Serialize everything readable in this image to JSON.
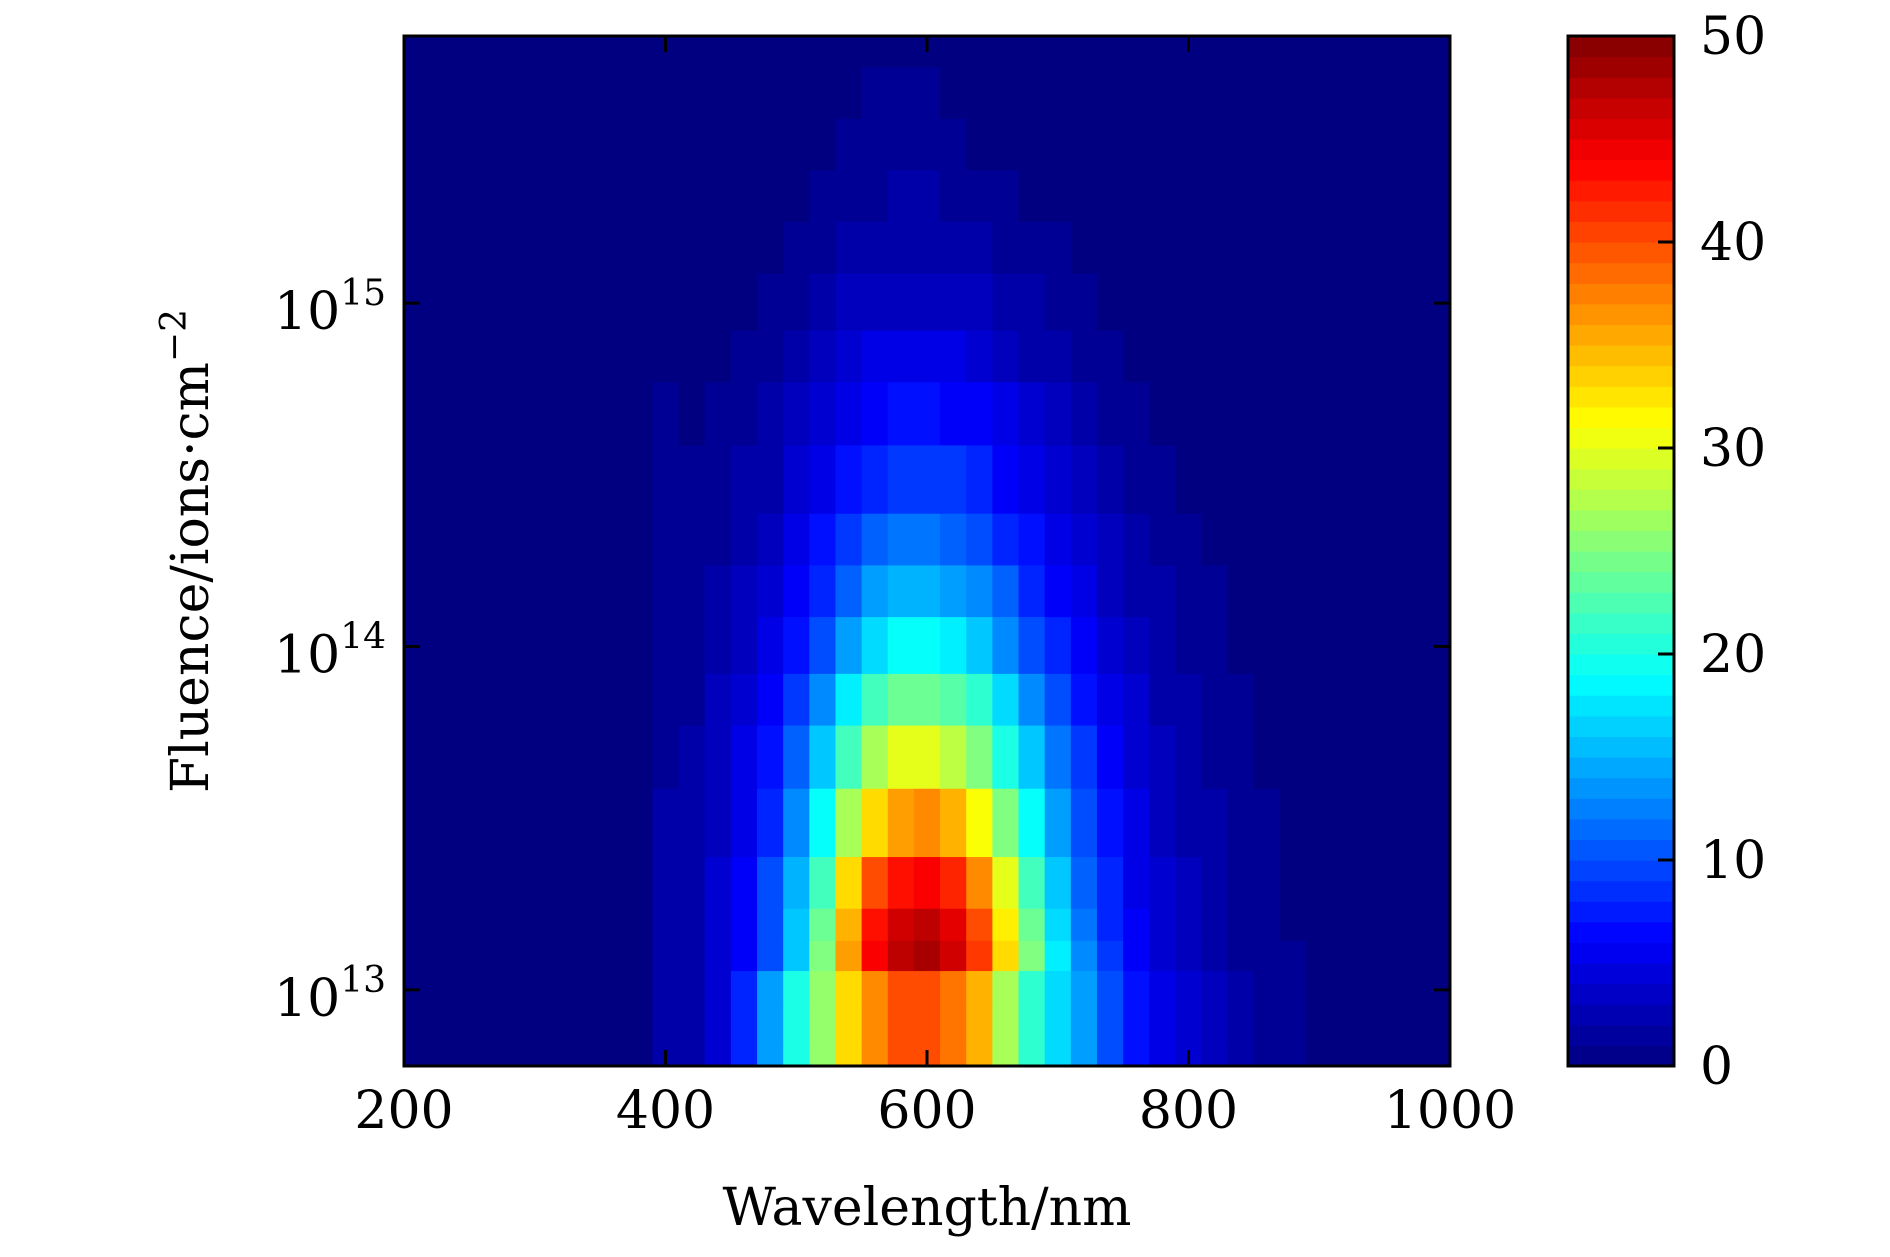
{
  "chart_data": {
    "type": "heatmap",
    "title": "",
    "xlabel": "Wavelength/nm",
    "ylabel": "Fluence/ions·cm",
    "ylabel_exponent": "−2",
    "x": {
      "range": [
        200,
        1000
      ],
      "ticks": [
        200,
        400,
        600,
        800,
        1000
      ],
      "tick_labels": [
        "200",
        "400",
        "600",
        "800",
        "1000"
      ]
    },
    "y": {
      "scale": "log",
      "range": [
        6000000000000.0,
        6000000000000000.0
      ],
      "ticks": [
        10000000000000.0,
        100000000000000.0,
        1000000000000000.0
      ],
      "tick_base": "10",
      "tick_exponents": [
        "13",
        "14",
        "15"
      ]
    },
    "colorbar": {
      "range": [
        0,
        50
      ],
      "ticks": [
        0,
        10,
        20,
        30,
        40,
        50
      ],
      "tick_labels": [
        "0",
        "10",
        "20",
        "30",
        "40",
        "50"
      ],
      "colormap": "jet",
      "levels": 50
    },
    "wavelength_nm": [
      200,
      220,
      240,
      260,
      280,
      300,
      320,
      340,
      360,
      380,
      400,
      420,
      440,
      460,
      480,
      500,
      520,
      540,
      560,
      580,
      600,
      620,
      640,
      660,
      680,
      700,
      720,
      740,
      760,
      780,
      800,
      820,
      840,
      860,
      880,
      900,
      920,
      940,
      960,
      980,
      1000
    ],
    "fluence": [
      6000000000000.0,
      8000000000000.0,
      10000000000000.0,
      13000000000000.0,
      15000000000000.0,
      20000000000000.0,
      30000000000000.0,
      50000000000000.0,
      70000000000000.0,
      100000000000000.0,
      150000000000000.0,
      200000000000000.0,
      300000000000000.0,
      500000000000000.0,
      700000000000000.0,
      1000000000000000.0,
      1500000000000000.0,
      2000000000000000.0,
      3000000000000000.0,
      4000000000000000.0,
      6000000000000000.0
    ],
    "intensity": [
      [
        0,
        0,
        0,
        0,
        0,
        0,
        0,
        0,
        0,
        0,
        2,
        2,
        4,
        8,
        14,
        20,
        26,
        33,
        37,
        40,
        40,
        38,
        35,
        27,
        21,
        17,
        14,
        10,
        7,
        5,
        4,
        3,
        2,
        1,
        1,
        0,
        0,
        0,
        0,
        0,
        0
      ],
      [
        0,
        0,
        0,
        0,
        0,
        0,
        0,
        0,
        0,
        0,
        2,
        2,
        4,
        8,
        14,
        20,
        26,
        33,
        37,
        40,
        40,
        38,
        35,
        27,
        21,
        17,
        14,
        10,
        7,
        5,
        4,
        3,
        2,
        1,
        1,
        0,
        0,
        0,
        0,
        0,
        0
      ],
      [
        0,
        0,
        0,
        0,
        0,
        0,
        0,
        0,
        0,
        0,
        2,
        2,
        4,
        8,
        14,
        20,
        26,
        33,
        37,
        40,
        40,
        38,
        35,
        27,
        21,
        17,
        14,
        10,
        7,
        5,
        4,
        3,
        2,
        1,
        1,
        0,
        0,
        0,
        0,
        0,
        0
      ],
      [
        0,
        0,
        0,
        0,
        0,
        0,
        0,
        0,
        0,
        0,
        2,
        2,
        4,
        6,
        10,
        16,
        25,
        36,
        44,
        47,
        48,
        46,
        41,
        33,
        25,
        18,
        13,
        9,
        6,
        4,
        3,
        2,
        1,
        1,
        1,
        0,
        0,
        0,
        0,
        0,
        0
      ],
      [
        0,
        0,
        0,
        0,
        0,
        0,
        0,
        0,
        0,
        0,
        2,
        2,
        4,
        6,
        10,
        16,
        24,
        35,
        43,
        46,
        47,
        45,
        40,
        32,
        24,
        17,
        12,
        8,
        6,
        4,
        3,
        2,
        1,
        1,
        0,
        0,
        0,
        0,
        0,
        0,
        0
      ],
      [
        0,
        0,
        0,
        0,
        0,
        0,
        0,
        0,
        0,
        0,
        2,
        2,
        4,
        6,
        10,
        15,
        22,
        33,
        40,
        43,
        44,
        42,
        37,
        30,
        22,
        16,
        11,
        8,
        5,
        4,
        3,
        2,
        1,
        1,
        0,
        0,
        0,
        0,
        0,
        0,
        0
      ],
      [
        0,
        0,
        0,
        0,
        0,
        0,
        0,
        0,
        0,
        0,
        2,
        2,
        3,
        5,
        8,
        13,
        19,
        27,
        33,
        36,
        37,
        35,
        31,
        25,
        19,
        14,
        10,
        7,
        5,
        3,
        2,
        2,
        1,
        1,
        0,
        0,
        0,
        0,
        0,
        0,
        0
      ],
      [
        0,
        0,
        0,
        0,
        0,
        0,
        0,
        0,
        0,
        0,
        1,
        2,
        3,
        5,
        7,
        11,
        16,
        22,
        27,
        30,
        30,
        28,
        25,
        20,
        16,
        12,
        9,
        6,
        4,
        3,
        2,
        1,
        1,
        0,
        0,
        0,
        0,
        0,
        0,
        0,
        0
      ],
      [
        0,
        0,
        0,
        0,
        0,
        0,
        0,
        0,
        0,
        0,
        1,
        1,
        3,
        4,
        6,
        9,
        13,
        18,
        22,
        24,
        24,
        23,
        21,
        17,
        13,
        10,
        7,
        5,
        4,
        2,
        2,
        1,
        1,
        0,
        0,
        0,
        0,
        0,
        0,
        0,
        0
      ],
      [
        0,
        0,
        0,
        0,
        0,
        0,
        0,
        0,
        0,
        0,
        1,
        1,
        2,
        3,
        5,
        7,
        10,
        14,
        17,
        19,
        19,
        18,
        16,
        13,
        10,
        8,
        6,
        4,
        3,
        2,
        1,
        1,
        0,
        0,
        0,
        0,
        0,
        0,
        0,
        0,
        0
      ],
      [
        0,
        0,
        0,
        0,
        0,
        0,
        0,
        0,
        0,
        0,
        1,
        1,
        2,
        3,
        4,
        6,
        8,
        11,
        14,
        15,
        15,
        14,
        13,
        11,
        8,
        6,
        5,
        3,
        2,
        2,
        1,
        1,
        0,
        0,
        0,
        0,
        0,
        0,
        0,
        0,
        0
      ],
      [
        0,
        0,
        0,
        0,
        0,
        0,
        0,
        0,
        0,
        0,
        1,
        1,
        1,
        2,
        3,
        5,
        7,
        9,
        11,
        12,
        12,
        11,
        10,
        8,
        7,
        5,
        4,
        3,
        2,
        1,
        1,
        0,
        0,
        0,
        0,
        0,
        0,
        0,
        0,
        0,
        0
      ],
      [
        0,
        0,
        0,
        0,
        0,
        0,
        0,
        0,
        0,
        0,
        1,
        1,
        1,
        2,
        2,
        4,
        5,
        7,
        8,
        9,
        9,
        9,
        8,
        6,
        5,
        4,
        3,
        2,
        1,
        1,
        0,
        0,
        0,
        0,
        0,
        0,
        0,
        0,
        0,
        0,
        0
      ],
      [
        0,
        0,
        0,
        0,
        0,
        0,
        0,
        0,
        0,
        0,
        1,
        0,
        1,
        1,
        2,
        3,
        4,
        5,
        6,
        7,
        7,
        6,
        6,
        5,
        4,
        3,
        2,
        1,
        1,
        0,
        0,
        0,
        0,
        0,
        0,
        0,
        0,
        0,
        0,
        0,
        0
      ],
      [
        0,
        0,
        0,
        0,
        0,
        0,
        0,
        0,
        0,
        0,
        0,
        0,
        0,
        1,
        1,
        2,
        3,
        4,
        5,
        5,
        5,
        5,
        4,
        3,
        2,
        2,
        1,
        1,
        0,
        0,
        0,
        0,
        0,
        0,
        0,
        0,
        0,
        0,
        0,
        0,
        0
      ],
      [
        0,
        0,
        0,
        0,
        0,
        0,
        0,
        0,
        0,
        0,
        0,
        0,
        0,
        0,
        1,
        1,
        2,
        3,
        3,
        3,
        3,
        3,
        3,
        2,
        2,
        1,
        1,
        0,
        0,
        0,
        0,
        0,
        0,
        0,
        0,
        0,
        0,
        0,
        0,
        0,
        0
      ],
      [
        0,
        0,
        0,
        0,
        0,
        0,
        0,
        0,
        0,
        0,
        0,
        0,
        0,
        0,
        0,
        1,
        1,
        2,
        2,
        2,
        2,
        2,
        2,
        1,
        1,
        1,
        0,
        0,
        0,
        0,
        0,
        0,
        0,
        0,
        0,
        0,
        0,
        0,
        0,
        0,
        0
      ],
      [
        0,
        0,
        0,
        0,
        0,
        0,
        0,
        0,
        0,
        0,
        0,
        0,
        0,
        0,
        0,
        0,
        1,
        1,
        1,
        2,
        2,
        1,
        1,
        1,
        0,
        0,
        0,
        0,
        0,
        0,
        0,
        0,
        0,
        0,
        0,
        0,
        0,
        0,
        0,
        0,
        0
      ],
      [
        0,
        0,
        0,
        0,
        0,
        0,
        0,
        0,
        0,
        0,
        0,
        0,
        0,
        0,
        0,
        0,
        0,
        1,
        1,
        1,
        1,
        1,
        0,
        0,
        0,
        0,
        0,
        0,
        0,
        0,
        0,
        0,
        0,
        0,
        0,
        0,
        0,
        0,
        0,
        0,
        0
      ],
      [
        0,
        0,
        0,
        0,
        0,
        0,
        0,
        0,
        0,
        0,
        0,
        0,
        0,
        0,
        0,
        0,
        0,
        0,
        1,
        1,
        1,
        0,
        0,
        0,
        0,
        0,
        0,
        0,
        0,
        0,
        0,
        0,
        0,
        0,
        0,
        0,
        0,
        0,
        0,
        0,
        0
      ],
      [
        0,
        0,
        0,
        0,
        0,
        0,
        0,
        0,
        0,
        0,
        0,
        0,
        0,
        0,
        0,
        0,
        0,
        0,
        0,
        0,
        0,
        0,
        0,
        0,
        0,
        0,
        0,
        0,
        0,
        0,
        0,
        0,
        0,
        0,
        0,
        0,
        0,
        0,
        0,
        0,
        0
      ]
    ]
  }
}
